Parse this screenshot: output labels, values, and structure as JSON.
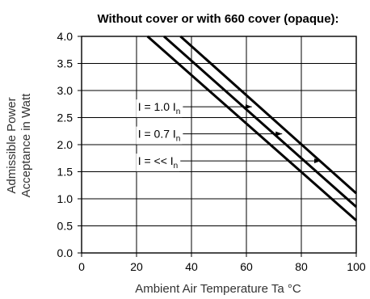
{
  "chart_data": {
    "type": "line",
    "title": "Without cover or with 660 cover (opaque):",
    "xlabel": "Ambient Air Temperature Ta °C",
    "ylabel": [
      "Admissible Power",
      "Acceptance in Watt"
    ],
    "xlim": [
      0,
      100
    ],
    "ylim": [
      0,
      4.0
    ],
    "xticks": [
      "0",
      "20",
      "40",
      "60",
      "80",
      "100"
    ],
    "yticks": [
      "0.0",
      "0.5",
      "1.0",
      "1.5",
      "2.0",
      "2.5",
      "3.0",
      "3.5",
      "4.0"
    ],
    "grid": true,
    "series": [
      {
        "label_main": "I = 1.0 I",
        "label_sub": "n",
        "points": [
          [
            24,
            4.0
          ],
          [
            100,
            0.6
          ]
        ]
      },
      {
        "label_main": "I = 0.7 I",
        "label_sub": "n",
        "points": [
          [
            30,
            4.0
          ],
          [
            100,
            0.85
          ]
        ]
      },
      {
        "label_main": "I = << I",
        "label_sub": "n",
        "points": [
          [
            36,
            4.0
          ],
          [
            100,
            1.1
          ]
        ]
      }
    ],
    "annotations": [
      {
        "series": 0,
        "text_y": 2.7,
        "text_x": 20.5,
        "arrow_end_x": 62
      },
      {
        "series": 1,
        "text_y": 2.2,
        "text_x": 20.5,
        "arrow_end_x": 73
      },
      {
        "series": 2,
        "text_y": 1.7,
        "text_x": 20.5,
        "arrow_end_x": 87
      }
    ]
  }
}
